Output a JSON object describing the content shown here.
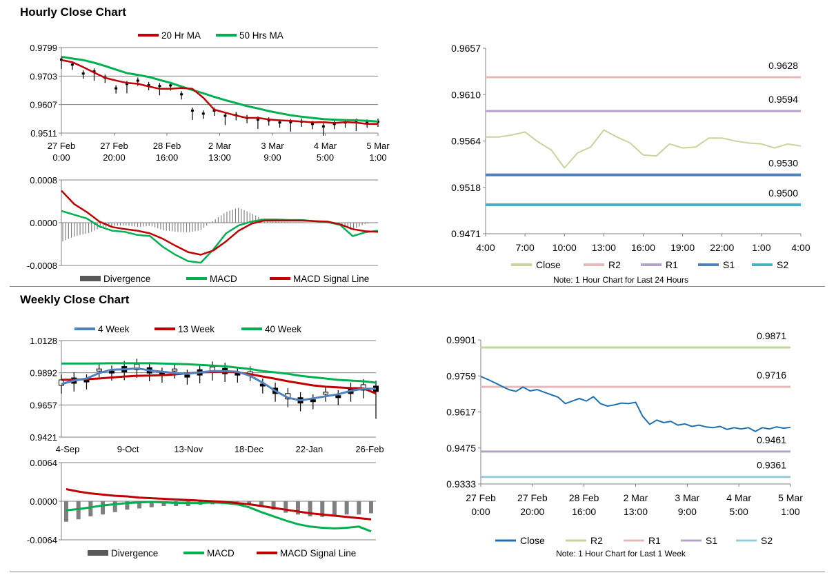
{
  "sections": {
    "hourly_title": "Hourly Close Chart",
    "weekly_title": "Weekly Close Chart"
  },
  "chart_data": [
    {
      "id": "hourly-price",
      "type": "line",
      "legend": [
        "20 Hr MA",
        "50 Hrs MA"
      ],
      "yticks": [
        "0.9799",
        "0.9703",
        "0.9607",
        "0.9511"
      ],
      "ylim": [
        0.9511,
        0.9799
      ],
      "xticks": [
        [
          "27 Feb",
          "0:00"
        ],
        [
          "27 Feb",
          "20:00"
        ],
        [
          "28 Feb",
          "16:00"
        ],
        [
          "2 Mar",
          "13:00"
        ],
        [
          "3 Mar",
          "9:00"
        ],
        [
          "4 Mar",
          "5:00"
        ],
        [
          "5 Mar",
          "1:00"
        ]
      ],
      "series": [
        {
          "name": "20 Hr MA",
          "color": "#c00000",
          "values": [
            0.9757,
            0.975,
            0.9733,
            0.9715,
            0.9697,
            0.9688,
            0.968,
            0.9677,
            0.9668,
            0.966,
            0.966,
            0.9663,
            0.966,
            0.963,
            0.959,
            0.958,
            0.957,
            0.9562,
            0.9562,
            0.9557,
            0.9554,
            0.9552,
            0.955,
            0.9547,
            0.9548,
            0.9545,
            0.9548,
            0.9546,
            0.9542,
            0.9542
          ]
        },
        {
          "name": "50 Hrs MA",
          "color": "#00b050",
          "values": [
            0.9768,
            0.9762,
            0.9757,
            0.9748,
            0.9737,
            0.9725,
            0.9713,
            0.9707,
            0.97,
            0.969,
            0.968,
            0.9668,
            0.9656,
            0.9645,
            0.9633,
            0.9622,
            0.9612,
            0.9602,
            0.9594,
            0.9585,
            0.9578,
            0.9571,
            0.9566,
            0.9562,
            0.9558,
            0.9556,
            0.9555,
            0.9554,
            0.9552,
            0.955
          ]
        },
        {
          "name": "Close",
          "color": "#000000",
          "values": [
            0.9757,
            0.974,
            0.971,
            0.9717,
            0.9696,
            0.966,
            0.9675,
            0.9686,
            0.9671,
            0.9668,
            0.967,
            0.964,
            0.9585,
            0.9575,
            0.9585,
            0.9568,
            0.957,
            0.956,
            0.9555,
            0.9552,
            0.9545,
            0.9546,
            0.9548,
            0.954,
            0.9532,
            0.954,
            0.9545,
            0.9548,
            0.9545,
            0.9548
          ]
        }
      ]
    },
    {
      "id": "hourly-macd",
      "type": "bar",
      "legend": [
        "Divergence",
        "MACD",
        "MACD Signal Line"
      ],
      "yticks": [
        "0.0008",
        "0.0000",
        "-0.0008"
      ],
      "ylim": [
        -0.0008,
        0.0008
      ],
      "series": [
        {
          "name": "MACD",
          "color": "#00b050",
          "values": [
            0.00022,
            0.00015,
            8e-05,
            -7e-05,
            -0.00015,
            -0.00017,
            -0.00023,
            -0.00025,
            -0.00045,
            -0.0006,
            -0.00072,
            -0.00075,
            -0.0005,
            -0.0002,
            -5e-05,
            2e-05,
            6e-05,
            6e-05,
            5e-05,
            5e-05,
            3e-05,
            1e-05,
            -4e-05,
            -0.00025,
            -0.00018,
            -0.00015
          ]
        },
        {
          "name": "MACD Signal Line",
          "color": "#c00000",
          "values": [
            0.0006,
            0.00035,
            0.0002,
            2e-05,
            -8e-05,
            -0.00012,
            -0.00015,
            -0.0002,
            -0.0003,
            -0.00043,
            -0.00055,
            -0.0006,
            -0.00052,
            -0.00035,
            -0.00015,
            -2e-05,
            4e-05,
            4e-05,
            4e-05,
            4e-05,
            3e-05,
            2e-05,
            -3e-05,
            -0.00012,
            -0.00016,
            -0.00017
          ]
        },
        {
          "name": "Divergence",
          "color": "#595959",
          "values": [
            -0.00035,
            -0.00025,
            -0.0002,
            -0.0001,
            -6e-05,
            -5e-05,
            -8e-05,
            -6e-05,
            -0.00014,
            -0.00017,
            -0.00018,
            -0.00014,
            4e-05,
            0.0002,
            0.00028,
            0.00018,
            6e-05,
            2e-05,
            1e-05,
            1e-05,
            0.0,
            -1e-05,
            -3e-05,
            -0.00014,
            -3e-05,
            1e-05
          ]
        }
      ]
    },
    {
      "id": "hourly-24h",
      "type": "line",
      "yticks": [
        "0.9657",
        "0.9610",
        "0.9564",
        "0.9518",
        "0.9471"
      ],
      "ylim": [
        0.9471,
        0.9657
      ],
      "xticks": [
        "4:00",
        "7:00",
        "10:00",
        "13:00",
        "16:00",
        "19:00",
        "22:00",
        "1:00",
        "4:00"
      ],
      "levels": [
        {
          "name": "R2",
          "value": 0.9628,
          "label": "0.9628",
          "color": "#e6b9b8"
        },
        {
          "name": "R1",
          "value": 0.9594,
          "label": "0.9594",
          "color": "#b3a2c7"
        },
        {
          "name": "S1",
          "value": 0.953,
          "label": "0.9530",
          "color": "#4f81bd"
        },
        {
          "name": "S2",
          "value": 0.95,
          "label": "0.9500",
          "color": "#4bacc6"
        }
      ],
      "series": [
        {
          "name": "Close",
          "color": "#c3d69b",
          "values": [
            0.9568,
            0.9568,
            0.957,
            0.9573,
            0.9563,
            0.9555,
            0.9537,
            0.9552,
            0.9558,
            0.9575,
            0.9568,
            0.9562,
            0.955,
            0.9549,
            0.9561,
            0.9557,
            0.9558,
            0.9567,
            0.9567,
            0.9564,
            0.9562,
            0.9561,
            0.9557,
            0.9561,
            0.9559
          ]
        }
      ],
      "legend": [
        "Close",
        "R2",
        "R1",
        "S1",
        "S2"
      ],
      "note": "Note: 1 Hour Chart for Last 24 Hours"
    },
    {
      "id": "weekly-price",
      "type": "line",
      "legend": [
        "4 Week",
        "13 Week",
        "40 Week"
      ],
      "yticks": [
        "1.0128",
        "0.9892",
        "0.9657",
        "0.9421"
      ],
      "ylim": [
        0.9421,
        1.0128
      ],
      "xticks": [
        "4-Sep",
        "9-Oct",
        "13-Nov",
        "18-Dec",
        "22-Jan",
        "26-Feb"
      ],
      "series": [
        {
          "name": "4 Week",
          "color": "#4f81bd",
          "values": [
            0.981,
            0.9835,
            0.985,
            0.989,
            0.9915,
            0.9918,
            0.9925,
            0.991,
            0.99,
            0.989,
            0.9885,
            0.9895,
            0.9905,
            0.9905,
            0.99,
            0.987,
            0.982,
            0.976,
            0.971,
            0.969,
            0.9705,
            0.972,
            0.9735,
            0.976,
            0.9775,
            0.9775
          ]
        },
        {
          "name": "13 Week",
          "color": "#c00000",
          "values": [
            0.984,
            0.9842,
            0.9845,
            0.985,
            0.9858,
            0.9865,
            0.987,
            0.9872,
            0.9875,
            0.988,
            0.9888,
            0.9895,
            0.9898,
            0.99,
            0.9895,
            0.9882,
            0.9865,
            0.9848,
            0.983,
            0.9815,
            0.98,
            0.979,
            0.9785,
            0.978,
            0.9778,
            0.974
          ]
        },
        {
          "name": "40 Week",
          "color": "#00b050",
          "values": [
            0.996,
            0.996,
            0.996,
            0.9961,
            0.9962,
            0.9962,
            0.9962,
            0.9962,
            0.996,
            0.9958,
            0.9955,
            0.995,
            0.9945,
            0.994,
            0.993,
            0.992,
            0.9905,
            0.9895,
            0.9885,
            0.987,
            0.986,
            0.985,
            0.984,
            0.9835,
            0.983,
            0.982
          ]
        }
      ]
    },
    {
      "id": "weekly-macd",
      "type": "bar",
      "legend": [
        "Divergence",
        "MACD",
        "MACD Signal Line"
      ],
      "yticks": [
        "0.0064",
        "0.0000",
        "-0.0064"
      ],
      "ylim": [
        -0.0064,
        0.0064
      ],
      "series": [
        {
          "name": "Divergence",
          "color": "#595959",
          "values": [
            -0.0034,
            -0.003,
            -0.0025,
            -0.0022,
            -0.0018,
            -0.0014,
            -0.0012,
            -0.001,
            -0.0008,
            -0.0008,
            -0.0008,
            -0.0006,
            -0.0005,
            -0.0003,
            0.0,
            -0.0004,
            -0.0009,
            -0.0014,
            -0.0019,
            -0.0022,
            -0.0025,
            -0.0026,
            -0.0025,
            -0.0022,
            -0.0022,
            -0.002
          ]
        },
        {
          "name": "MACD",
          "color": "#00b050",
          "values": [
            -0.0015,
            -0.0013,
            -0.001,
            -0.0007,
            -0.0005,
            -0.0003,
            -0.0002,
            -0.0001,
            -0.0002,
            -0.0003,
            -0.0003,
            -0.0003,
            -0.0002,
            -0.0003,
            -0.0005,
            -0.001,
            -0.0018,
            -0.0025,
            -0.0032,
            -0.0038,
            -0.0042,
            -0.0044,
            -0.0045,
            -0.0044,
            -0.0042,
            -0.005
          ]
        },
        {
          "name": "MACD Signal Line",
          "color": "#c00000",
          "values": [
            0.002,
            0.0016,
            0.0013,
            0.0011,
            0.0009,
            0.0008,
            0.0006,
            0.0005,
            0.0004,
            0.0003,
            0.0002,
            0.0001,
            0.0,
            -0.0001,
            -0.0003,
            -0.0005,
            -0.0008,
            -0.0011,
            -0.0014,
            -0.0017,
            -0.002,
            -0.0022,
            -0.0024,
            -0.0026,
            -0.0028,
            -0.003
          ]
        }
      ]
    },
    {
      "id": "weekly-1w",
      "type": "line",
      "yticks": [
        "0.9901",
        "0.9759",
        "0.9617",
        "0.9475",
        "0.9333"
      ],
      "ylim": [
        0.9333,
        0.9901
      ],
      "xticks": [
        [
          "27 Feb",
          "0:00"
        ],
        [
          "27 Feb",
          "20:00"
        ],
        [
          "28 Feb",
          "16:00"
        ],
        [
          "2 Mar",
          "13:00"
        ],
        [
          "3 Mar",
          "9:00"
        ],
        [
          "4 Mar",
          "5:00"
        ],
        [
          "5 Mar",
          "1:00"
        ]
      ],
      "levels": [
        {
          "name": "R2",
          "value": 0.9871,
          "label": "0.9871",
          "color": "#c3d69b"
        },
        {
          "name": "R1",
          "value": 0.9716,
          "label": "0.9716",
          "color": "#e6b9b8"
        },
        {
          "name": "S1",
          "value": 0.9461,
          "label": "0.9461",
          "color": "#b3a2c7"
        },
        {
          "name": "S2",
          "value": 0.9361,
          "label": "0.9361",
          "color": "#93cddd"
        }
      ],
      "series": [
        {
          "name": "Close",
          "color": "#1f6fb2",
          "values": [
            0.9757,
            0.9745,
            0.9732,
            0.9718,
            0.9705,
            0.9698,
            0.9715,
            0.97,
            0.9705,
            0.9695,
            0.9685,
            0.9675,
            0.965,
            0.966,
            0.967,
            0.966,
            0.9677,
            0.965,
            0.964,
            0.9645,
            0.9652,
            0.965,
            0.9655,
            0.96,
            0.9568,
            0.9585,
            0.9575,
            0.958,
            0.9565,
            0.957,
            0.956,
            0.9565,
            0.9558,
            0.9555,
            0.956,
            0.9548,
            0.9555,
            0.955,
            0.9555,
            0.954,
            0.9555,
            0.955,
            0.9558,
            0.9553,
            0.9556
          ]
        }
      ],
      "legend": [
        "Close",
        "R2",
        "R1",
        "S1",
        "S2"
      ],
      "note": "Note: 1 Hour Chart for Last 1 Week"
    }
  ]
}
